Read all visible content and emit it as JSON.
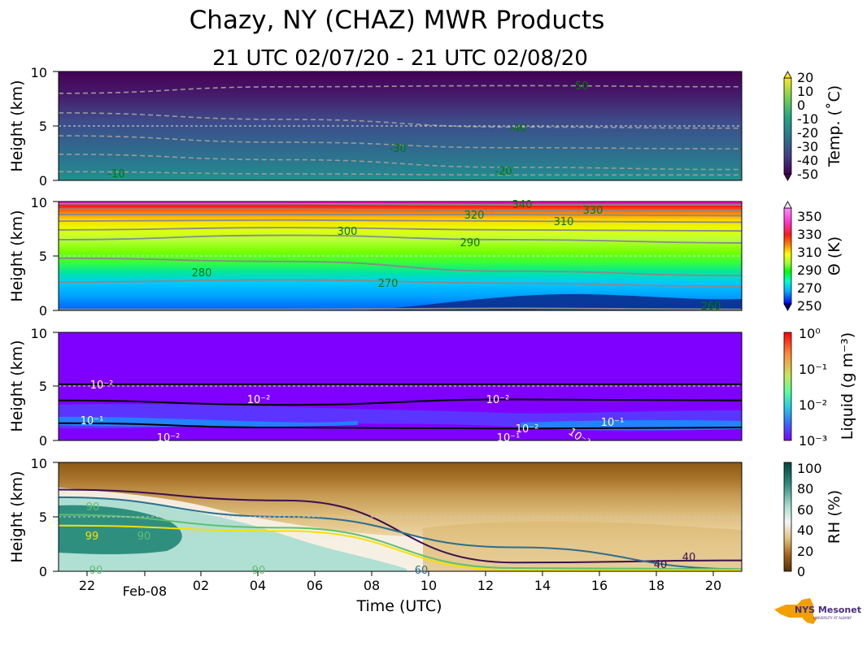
{
  "figure": {
    "title": "Chazy, NY (CHAZ) MWR Products",
    "subtitle": "21 UTC 02/07/20 - 21 UTC 02/08/20",
    "xlabel": "Time (UTC)",
    "x_ticks": [
      "22",
      "02",
      "04",
      "06",
      "08",
      "10",
      "12",
      "14",
      "16",
      "18",
      "20"
    ],
    "x_date_label": "Feb-08",
    "logo": {
      "text": "NYS Mesonet",
      "subtext": "UNIVERSITY AT ALBANY",
      "colors": {
        "state": "#f0a000",
        "text": "#4b2c7f"
      }
    }
  },
  "chart_data": [
    {
      "type": "heatmap",
      "name": "temperature",
      "ylabel": "Height (km)",
      "y_ticks": [
        "0",
        "5",
        "10"
      ],
      "ylim": [
        0,
        10
      ],
      "xlim": [
        "21 UTC 02/07/20",
        "21 UTC 02/08/20"
      ],
      "colorbar": {
        "label": "Temp. (˚C)",
        "ticks": [
          "20",
          "10",
          "0",
          "-10",
          "-20",
          "-30",
          "-40",
          "-50"
        ],
        "range": [
          -50,
          20
        ],
        "colormap": "viridis"
      },
      "contour_labels": [
        "-50",
        "-40",
        "-30",
        "-20",
        "-10"
      ],
      "contours": [
        {
          "level": -10,
          "height_km": [
            0.8,
            0.6,
            0.5,
            0.5
          ]
        },
        {
          "level": -20,
          "height_km": [
            2.4,
            1.9,
            1.2,
            1.0
          ]
        },
        {
          "level": -30,
          "height_km": [
            4.1,
            3.5,
            3.0,
            2.9
          ]
        },
        {
          "level": -40,
          "height_km": [
            6.2,
            5.6,
            4.9,
            4.8
          ]
        },
        {
          "level": -50,
          "height_km": [
            8.0,
            8.6,
            8.7,
            8.6
          ]
        }
      ]
    },
    {
      "type": "heatmap",
      "name": "potential_temperature",
      "ylabel": "Height (km)",
      "y_ticks": [
        "0",
        "5",
        "10"
      ],
      "ylim": [
        0,
        10
      ],
      "colorbar": {
        "label": "Θ (K)",
        "ticks": [
          "350",
          "330",
          "310",
          "290",
          "270",
          "250"
        ],
        "range": [
          250,
          360
        ],
        "colormap": "gist_ncar"
      },
      "contour_labels": [
        "340",
        "330",
        "320",
        "310",
        "300",
        "290",
        "280",
        "270",
        "260"
      ],
      "contours": [
        {
          "level": 260,
          "height_km": [
            0.1,
            0.1,
            0.2,
            0.1
          ]
        },
        {
          "level": 270,
          "height_km": [
            2.6,
            2.8,
            2.5,
            2.2
          ]
        },
        {
          "level": 280,
          "height_km": [
            4.8,
            4.5,
            3.6,
            3.2
          ]
        },
        {
          "level": 290,
          "height_km": [
            6.5,
            6.9,
            6.5,
            6.2
          ]
        },
        {
          "level": 300,
          "height_km": [
            7.4,
            7.6,
            7.4,
            7.3
          ]
        },
        {
          "level": 310,
          "height_km": [
            8.2,
            8.3,
            8.2,
            8.1
          ]
        },
        {
          "level": 320,
          "height_km": [
            8.8,
            8.8,
            8.8,
            8.7
          ]
        },
        {
          "level": 330,
          "height_km": [
            9.3,
            9.3,
            9.2,
            9.2
          ]
        },
        {
          "level": 340,
          "height_km": [
            9.8,
            9.8,
            9.7,
            9.7
          ]
        }
      ]
    },
    {
      "type": "heatmap",
      "name": "liquid_water",
      "ylabel": "Height (km)",
      "y_ticks": [
        "0",
        "5",
        "10"
      ],
      "ylim": [
        0,
        10
      ],
      "colorbar": {
        "label": "Liquid (g m⁻³)",
        "ticks": [
          "10⁰",
          "10⁻¹",
          "10⁻²",
          "10⁻³"
        ],
        "range": [
          0.001,
          1
        ],
        "scale": "log",
        "colormap": "rainbow"
      },
      "contour_labels": [
        "10⁻²",
        "10⁻²",
        "10⁻¹",
        "10⁻²",
        "10⁻²",
        "10⁻²",
        "10⁻¹",
        "10⁻¹",
        "10⁻²"
      ],
      "contours": [
        {
          "level": "1e-2",
          "height_km": [
            5.2,
            5.2,
            5.2,
            5.2
          ]
        },
        {
          "level": "1e-2",
          "height_km": [
            3.7,
            3.3,
            3.8,
            3.7
          ]
        },
        {
          "level": "1e-1",
          "height_km": [
            1.6,
            1.2,
            1.1,
            1.2
          ]
        }
      ]
    },
    {
      "type": "heatmap",
      "name": "relative_humidity",
      "ylabel": "Height (km)",
      "y_ticks": [
        "0",
        "5",
        "10"
      ],
      "ylim": [
        0,
        10
      ],
      "colorbar": {
        "label": "RH (%)",
        "ticks": [
          "100",
          "80",
          "60",
          "40",
          "20",
          "0"
        ],
        "range": [
          0,
          105
        ],
        "colormap": "BrBG"
      },
      "contour_labels": [
        "90",
        "99",
        "90",
        "90",
        "90",
        "60",
        "40",
        "40"
      ],
      "contours": [
        {
          "level": 40,
          "height_km": [
            7.5,
            6.5,
            0.8,
            1.0
          ]
        },
        {
          "level": 60,
          "height_km": [
            6.8,
            5.0,
            2.2,
            0.2
          ]
        },
        {
          "level": 90,
          "height_km": [
            5.2,
            4.0,
            0.3,
            0.2
          ]
        },
        {
          "level": 99,
          "height_km": [
            4.2,
            3.7,
            0.1,
            0.1
          ]
        }
      ]
    }
  ]
}
